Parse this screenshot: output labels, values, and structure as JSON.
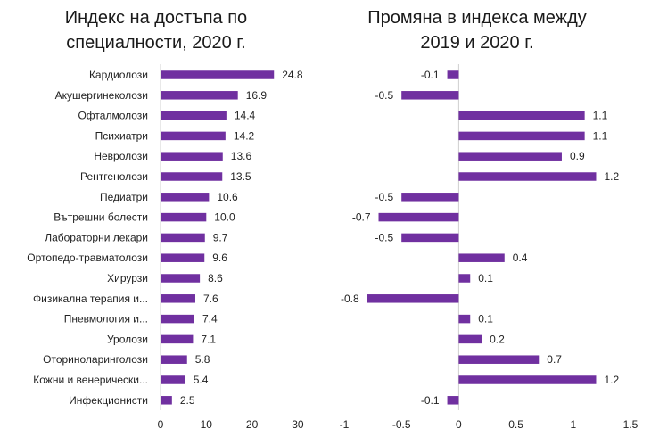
{
  "chart_data": [
    {
      "type": "bar",
      "orientation": "horizontal",
      "title_lines": [
        "Индекс на достъпа по",
        "специалности, 2020 г."
      ],
      "categories": [
        "Кардиолози",
        "Акушергинеколози",
        "Офталмолози",
        "Психиатри",
        "Невролози",
        "Рентгенолози",
        "Педиатри",
        "Вътрешни болести",
        "Лабораторни лекари",
        "Ортопедо-травматолози",
        "Хирурзи",
        "Физикална терапия и...",
        "Пневмология и...",
        "Уролози",
        "Оториноларинголози",
        "Кожни и венерически...",
        "Инфекционисти"
      ],
      "values": [
        24.8,
        16.9,
        14.4,
        14.2,
        13.6,
        13.5,
        10.6,
        10.0,
        9.7,
        9.6,
        8.6,
        7.6,
        7.4,
        7.1,
        5.8,
        5.4,
        2.5
      ],
      "value_labels": [
        "24.8",
        "16.9",
        "14.4",
        "14.2",
        "13.6",
        "13.5",
        "10.6",
        "10.0",
        "9.7",
        "9.6",
        "8.6",
        "7.6",
        "7.4",
        "7.1",
        "5.8",
        "5.4",
        "2.5"
      ],
      "xlim": [
        0,
        30
      ],
      "ticks": [
        "0",
        "10",
        "20",
        "30"
      ],
      "color": "#7030a0",
      "grid": false
    },
    {
      "type": "bar",
      "orientation": "horizontal",
      "title_lines": [
        "Промяна в индекса между",
        "2019 и 2020 г."
      ],
      "values": [
        -0.1,
        -0.5,
        1.1,
        1.1,
        0.9,
        1.2,
        -0.5,
        -0.7,
        -0.5,
        0.4,
        0.1,
        -0.8,
        0.1,
        0.2,
        0.7,
        1.2,
        -0.1
      ],
      "value_labels": [
        "-0.1",
        "-0.5",
        "1.1",
        "1.1",
        "0.9",
        "1.2",
        "-0.5",
        "-0.7",
        "-0.5",
        "0.4",
        "0.1",
        "-0.8",
        "0.1",
        "0.2",
        "0.7",
        "1.2",
        "-0.1"
      ],
      "xlim": [
        -1,
        1.5
      ],
      "ticks": [
        "-1",
        "-0.5",
        "0",
        "0.5",
        "1",
        "1.5"
      ],
      "color": "#7030a0",
      "grid": false
    }
  ]
}
